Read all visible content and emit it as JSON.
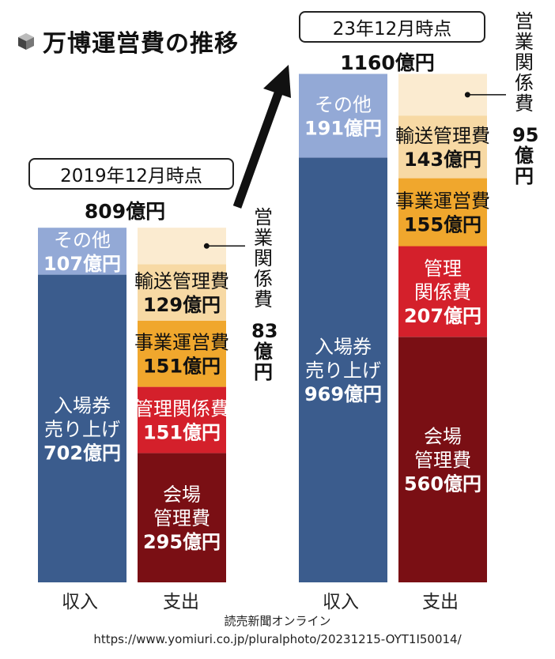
{
  "title": "万博運営費の推移",
  "chart_data": {
    "type": "bar",
    "stacked": true,
    "unit": "億円",
    "groups": [
      {
        "date_label": "2019年12月時点",
        "total_label": "809億円",
        "total": 809,
        "bars": [
          {
            "category": "収入",
            "segments": [
              {
                "name": "入場券売り上げ",
                "value": 702,
                "text": [
                  "入場券",
                  "売り上げ",
                  "702億円"
                ],
                "color": "#3b5c8d",
                "text_color": "#ffffff"
              },
              {
                "name": "その他",
                "value": 107,
                "text": [
                  "その他",
                  "107億円"
                ],
                "color": "#93a9d6",
                "text_color": "#ffffff"
              }
            ]
          },
          {
            "category": "支出",
            "segments": [
              {
                "name": "会場管理費",
                "value": 295,
                "text": [
                  "会場",
                  "管理費",
                  "295億円"
                ],
                "color": "#7a0f14",
                "text_color": "#ffffff"
              },
              {
                "name": "管理関係費",
                "value": 151,
                "text": [
                  "管理関係費",
                  "151億円"
                ],
                "color": "#d4202b",
                "text_color": "#ffffff"
              },
              {
                "name": "事業運営費",
                "value": 151,
                "text": [
                  "事業運営費",
                  "151億円"
                ],
                "color": "#f0a72d",
                "text_color": "#111111"
              },
              {
                "name": "輸送管理費",
                "value": 129,
                "text": [
                  "輸送管理費",
                  "129億円"
                ],
                "color": "#f7d9a4",
                "text_color": "#111111"
              },
              {
                "name": "営業関係費",
                "value": 83,
                "text": [],
                "color": "#fbebd0",
                "text_color": "#111111"
              }
            ]
          }
        ],
        "callout": {
          "name": "営業関係費",
          "chars": [
            "営",
            "業",
            "関",
            "係",
            "費"
          ],
          "value_chars": [
            "83",
            "億",
            "円"
          ]
        }
      },
      {
        "date_label": "23年12月時点",
        "total_label": "1160億円",
        "total": 1160,
        "bars": [
          {
            "category": "収入",
            "segments": [
              {
                "name": "入場券売り上げ",
                "value": 969,
                "text": [
                  "入場券",
                  "売り上げ",
                  "969億円"
                ],
                "color": "#3b5c8d",
                "text_color": "#ffffff"
              },
              {
                "name": "その他",
                "value": 191,
                "text": [
                  "その他",
                  "191億円"
                ],
                "color": "#93a9d6",
                "text_color": "#ffffff"
              }
            ]
          },
          {
            "category": "支出",
            "segments": [
              {
                "name": "会場管理費",
                "value": 560,
                "text": [
                  "会場",
                  "管理費",
                  "560億円"
                ],
                "color": "#7a0f14",
                "text_color": "#ffffff"
              },
              {
                "name": "管理関係費",
                "value": 207,
                "text": [
                  "管理",
                  "関係費",
                  "207億円"
                ],
                "color": "#d4202b",
                "text_color": "#ffffff"
              },
              {
                "name": "事業運営費",
                "value": 155,
                "text": [
                  "事業運営費",
                  "155億円"
                ],
                "color": "#f0a72d",
                "text_color": "#111111"
              },
              {
                "name": "輸送管理費",
                "value": 143,
                "text": [
                  "輸送管理費",
                  "143億円"
                ],
                "color": "#f7d9a4",
                "text_color": "#111111"
              },
              {
                "name": "営業関係費",
                "value": 95,
                "text": [],
                "color": "#fbebd0",
                "text_color": "#111111"
              }
            ]
          }
        ],
        "callout": {
          "name": "営業関係費",
          "chars": [
            "営",
            "業",
            "関",
            "係",
            "費"
          ],
          "value_chars": [
            "95",
            "億",
            "円"
          ]
        }
      }
    ]
  },
  "source": {
    "name": "読売新聞オンライン",
    "url": "https://www.yomiuri.co.jp/pluralphoto/20231215-OYT1I50014/"
  }
}
